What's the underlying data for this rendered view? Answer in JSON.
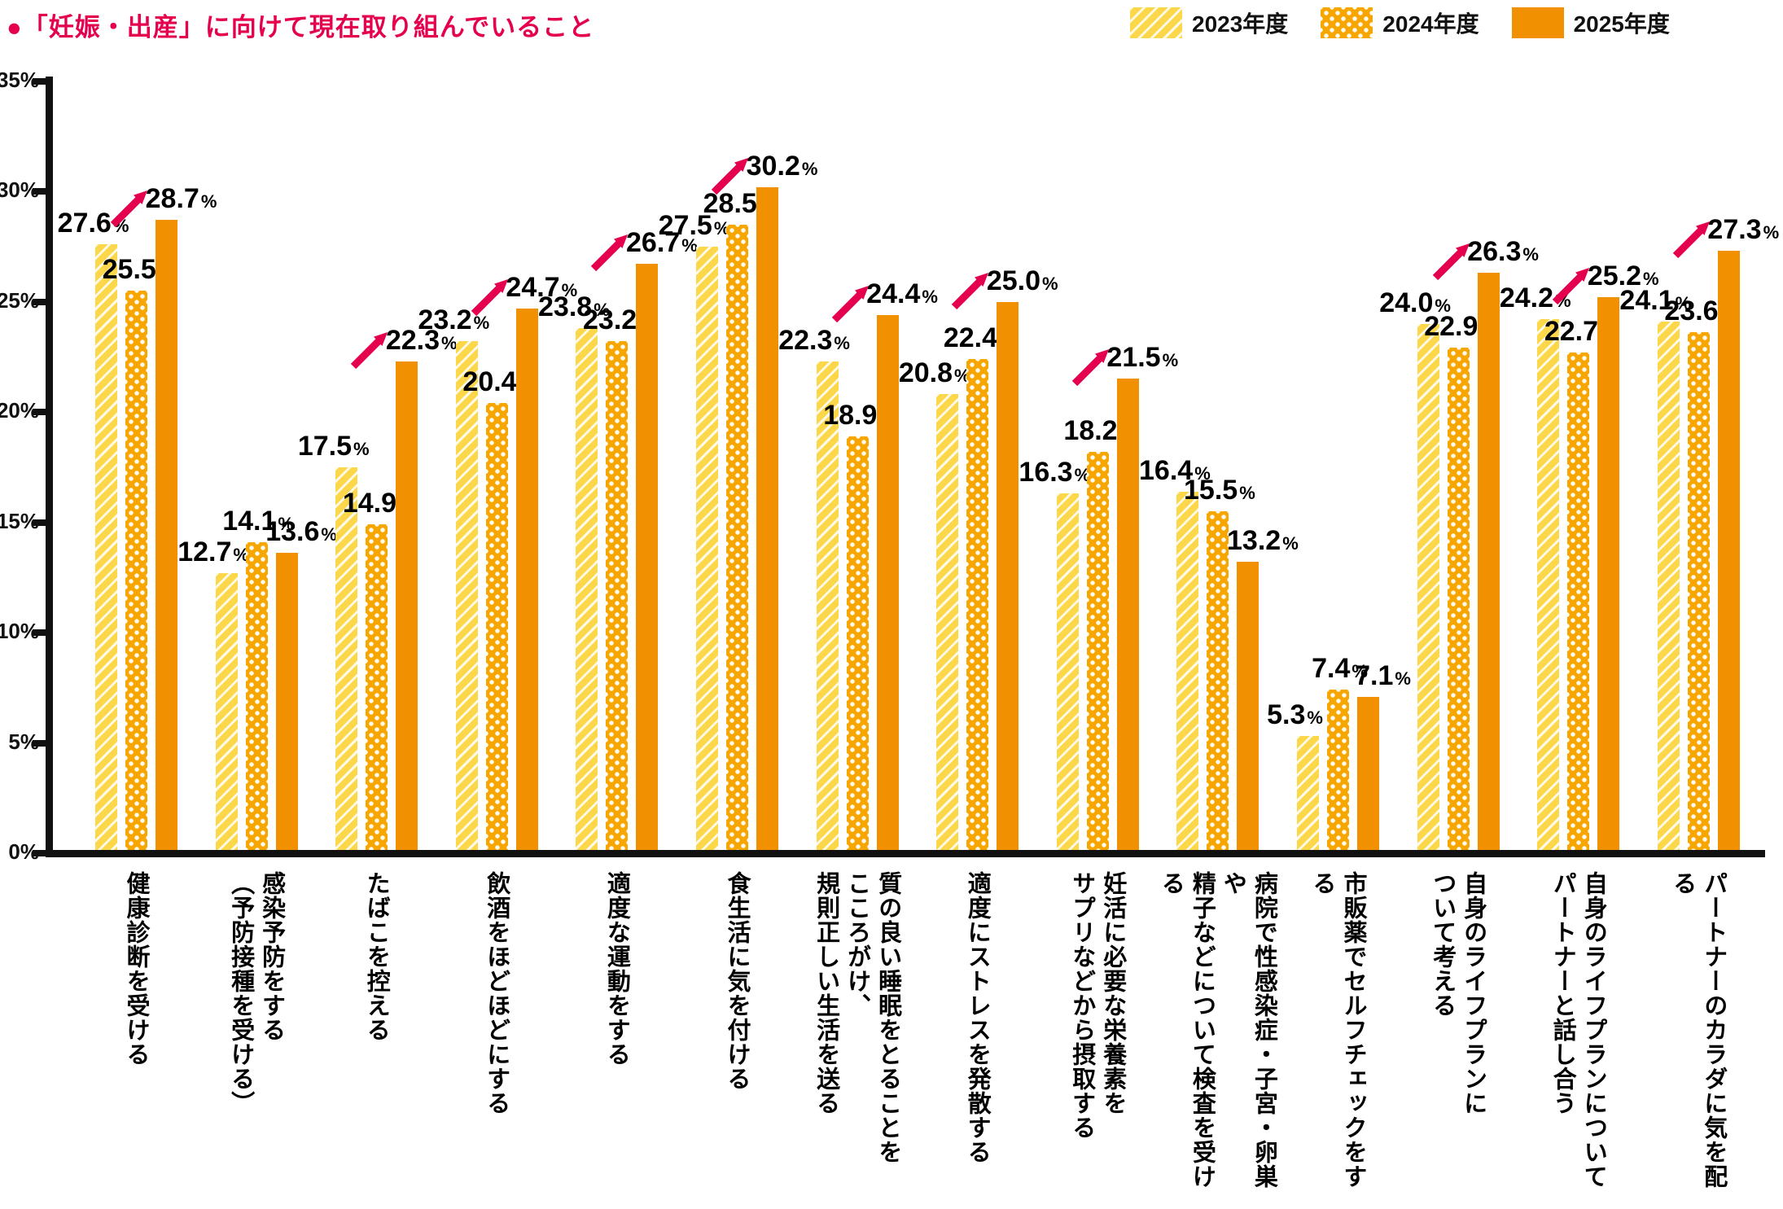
{
  "header": {
    "title": "●「妊娠・出産」に向けて現在取り組んでいること"
  },
  "colors": {
    "accent_pink": "#E4004F",
    "series_2023": "#FDD74A",
    "series_2024": "#F7A600",
    "series_2025": "#F19000",
    "axis": "#111111"
  },
  "chart_data": {
    "type": "bar",
    "title": "●「妊娠・出産」に向けて現在取り組んでいること",
    "unit": "%",
    "ylim": [
      0,
      35
    ],
    "ytick_step": 5,
    "grid": false,
    "legend_position": "top-right",
    "ytick_labels": [
      "0%",
      "5%",
      "10%",
      "15%",
      "20%",
      "25%",
      "30%",
      "35%"
    ],
    "categories": [
      "健康診断を受ける",
      "感染予防をする\n（予防接種を受ける）",
      "たばこを控える",
      "飲酒をほどほどにする",
      "適度な運動をする",
      "食生活に気を付ける",
      "質の良い睡眠をとることを\nこころがけ、\n規則正しい生活を送る",
      "適度にストレスを発散する",
      "妊活に必要な栄養素を\nサプリなどから摂取する",
      "病院で性感染症・子宮・卵巣や\n精子などについて検査を受ける",
      "市販薬でセルフチェックをする",
      "自身のライフプランに\nついて考える",
      "自身のライフプランについて\nパートナーと話し合う",
      "パートナーのカラダに気を配る"
    ],
    "series": [
      {
        "name": "2023年度",
        "pattern": "diagonal-stripes",
        "color": "#FDD74A",
        "values": [
          27.6,
          12.7,
          17.5,
          23.2,
          23.8,
          27.5,
          22.3,
          20.8,
          16.3,
          16.4,
          5.3,
          24.0,
          24.2,
          24.1
        ]
      },
      {
        "name": "2024年度",
        "pattern": "dots",
        "color": "#F7A600",
        "values": [
          25.5,
          14.1,
          14.9,
          20.4,
          23.2,
          28.5,
          18.9,
          22.4,
          18.2,
          15.5,
          7.4,
          22.9,
          22.7,
          23.6
        ]
      },
      {
        "name": "2025年度",
        "pattern": "solid",
        "color": "#F19000",
        "values": [
          28.7,
          13.6,
          22.3,
          24.7,
          26.7,
          30.2,
          24.4,
          25.0,
          21.5,
          13.2,
          7.1,
          26.3,
          25.2,
          27.3
        ]
      }
    ],
    "increase_arrows": [
      true,
      false,
      true,
      true,
      true,
      true,
      true,
      true,
      true,
      false,
      false,
      true,
      true,
      true
    ],
    "arrow_color": "#E4004F"
  }
}
